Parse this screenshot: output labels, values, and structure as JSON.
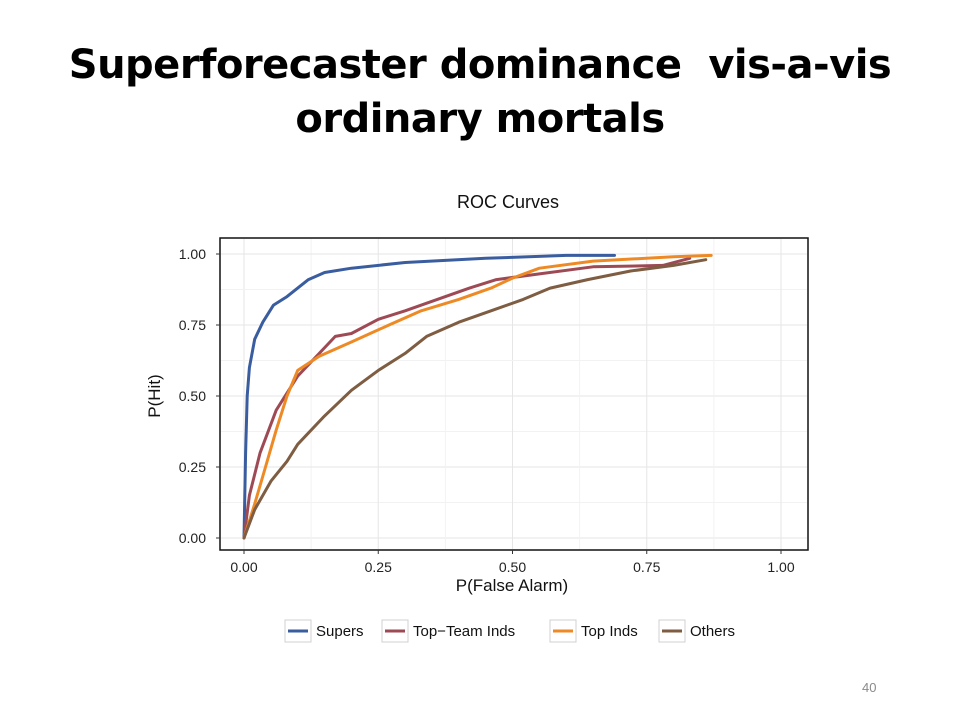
{
  "slide": {
    "title_lines": [
      "Superforecaster dominance  vis-a-vis",
      "ordinary mortals"
    ],
    "page_number": "40"
  },
  "chart_data": {
    "type": "line",
    "title": "ROC Curves",
    "xlabel": "P(False Alarm)",
    "ylabel": "P(Hit)",
    "xlim": [
      0,
      1
    ],
    "ylim": [
      0,
      1
    ],
    "xticks": [
      "0.00",
      "0.25",
      "0.50",
      "0.75",
      "1.00"
    ],
    "yticks": [
      "0.00",
      "0.25",
      "0.50",
      "0.75",
      "1.00"
    ],
    "grid": true,
    "legend_position": "bottom",
    "series": [
      {
        "name": "Supers",
        "color": "#3a5da0",
        "x": [
          0,
          0.003,
          0.006,
          0.01,
          0.02,
          0.035,
          0.055,
          0.08,
          0.1,
          0.12,
          0.15,
          0.2,
          0.3,
          0.45,
          0.6,
          0.69
        ],
        "y": [
          0,
          0.3,
          0.5,
          0.6,
          0.7,
          0.76,
          0.82,
          0.85,
          0.88,
          0.91,
          0.935,
          0.95,
          0.97,
          0.985,
          0.995,
          0.995
        ]
      },
      {
        "name": "Top−Team Inds",
        "color": "#9e4a55",
        "x": [
          0,
          0.01,
          0.03,
          0.06,
          0.1,
          0.13,
          0.17,
          0.2,
          0.25,
          0.3,
          0.36,
          0.42,
          0.47,
          0.55,
          0.65,
          0.78,
          0.83
        ],
        "y": [
          0,
          0.15,
          0.3,
          0.45,
          0.57,
          0.63,
          0.71,
          0.72,
          0.77,
          0.8,
          0.84,
          0.88,
          0.91,
          0.93,
          0.955,
          0.96,
          0.985
        ]
      },
      {
        "name": "Top Inds",
        "color": "#ee8a25",
        "x": [
          0,
          0.02,
          0.04,
          0.06,
          0.08,
          0.1,
          0.14,
          0.2,
          0.27,
          0.33,
          0.4,
          0.46,
          0.5,
          0.55,
          0.65,
          0.8,
          0.87
        ],
        "y": [
          0,
          0.12,
          0.25,
          0.38,
          0.5,
          0.59,
          0.64,
          0.69,
          0.75,
          0.8,
          0.84,
          0.88,
          0.915,
          0.95,
          0.975,
          0.99,
          0.995
        ]
      },
      {
        "name": "Others",
        "color": "#7e5d42",
        "x": [
          0,
          0.02,
          0.05,
          0.08,
          0.1,
          0.15,
          0.2,
          0.25,
          0.3,
          0.34,
          0.4,
          0.46,
          0.52,
          0.57,
          0.64,
          0.72,
          0.8,
          0.86
        ],
        "y": [
          0,
          0.1,
          0.2,
          0.27,
          0.33,
          0.43,
          0.52,
          0.59,
          0.65,
          0.71,
          0.76,
          0.8,
          0.84,
          0.88,
          0.91,
          0.94,
          0.96,
          0.98
        ]
      }
    ]
  }
}
